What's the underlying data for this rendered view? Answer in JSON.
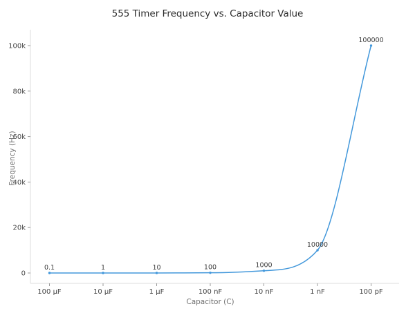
{
  "page": {
    "background_color": "#ffffff"
  },
  "chart_data": {
    "type": "line",
    "title": "555 Timer Frequency vs. Capacitor Value",
    "xlabel": "Capacitor (C)",
    "ylabel": "Frequency (Hz)",
    "categories": [
      "100 µF",
      "10 µF",
      "1 µF",
      "100 nF",
      "10 nF",
      "1 nF",
      "100 pF"
    ],
    "values": [
      0.1,
      1,
      10,
      100,
      1000,
      10000,
      100000
    ],
    "point_labels": [
      "0.1",
      "1",
      "10",
      "100",
      "1000",
      "10000",
      "100000"
    ],
    "y_ticks": [
      {
        "value": 0,
        "label": "0"
      },
      {
        "value": 20000,
        "label": "20k"
      },
      {
        "value": 40000,
        "label": "40k"
      },
      {
        "value": 60000,
        "label": "60k"
      },
      {
        "value": 80000,
        "label": "80k"
      },
      {
        "value": 100000,
        "label": "100k"
      }
    ],
    "ylim": [
      0,
      107000
    ],
    "grid": false,
    "legend": "none",
    "curve": "monotone",
    "colors": {
      "line": "#4398db",
      "marker": "#4398db",
      "spine": "#dcdcdc",
      "tick_mark": "#9a9a9a",
      "tick_label": "#454545",
      "point_label": "#3b3b3b",
      "axis_title": "#707070",
      "title": "#2b2b2b"
    }
  }
}
